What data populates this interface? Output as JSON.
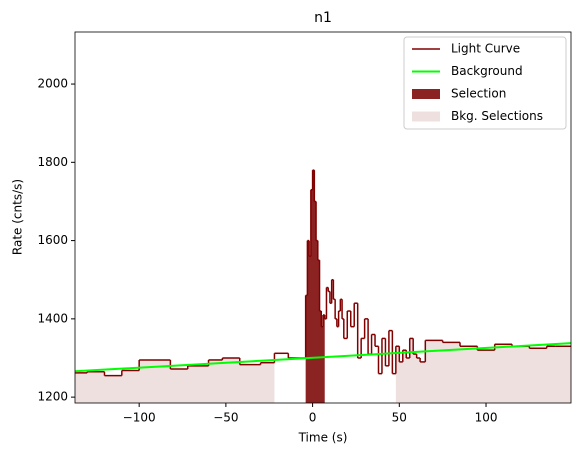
{
  "chart_data": {
    "type": "step",
    "title": "n1",
    "x_label": "Time (s)",
    "y_label": "Rate (cnts/s)",
    "xlim": [
      -137,
      149
    ],
    "ylim": [
      1185,
      2133
    ],
    "xticks": [
      {
        "value": -100,
        "label": "−100"
      },
      {
        "value": -50,
        "label": "−50"
      },
      0,
      50,
      100
    ],
    "yticks": [
      1200,
      1400,
      1600,
      1800,
      2000
    ],
    "series": [
      {
        "name": "Light Curve",
        "color": "#800000",
        "step": true,
        "x": [
          -137,
          -130,
          -120,
          -110,
          -100,
          -82,
          -72,
          -60,
          -52,
          -42,
          -30,
          -22,
          -14,
          -4,
          -3,
          -2,
          -1,
          0,
          1,
          2,
          3,
          4,
          5,
          6,
          7,
          8,
          9,
          10,
          11,
          12,
          13,
          14,
          15,
          16,
          17,
          18,
          20,
          22,
          24,
          26,
          28,
          30,
          32,
          34,
          36,
          38,
          40,
          42,
          44,
          46,
          48,
          50,
          52,
          54,
          56,
          58,
          60,
          62,
          65,
          75,
          85,
          95,
          105,
          115,
          125,
          135,
          140
        ],
        "values": [
          1262,
          1265,
          1255,
          1268,
          1295,
          1272,
          1280,
          1295,
          1300,
          1283,
          1288,
          1312,
          1300,
          1460,
          1600,
          1560,
          1730,
          1780,
          1700,
          1600,
          1550,
          1420,
          1380,
          1410,
          1400,
          1480,
          1470,
          1440,
          1500,
          1450,
          1400,
          1380,
          1420,
          1450,
          1400,
          1350,
          1420,
          1380,
          1440,
          1300,
          1350,
          1400,
          1310,
          1360,
          1330,
          1260,
          1350,
          1280,
          1370,
          1260,
          1330,
          1290,
          1320,
          1300,
          1350,
          1310,
          1300,
          1290,
          1345,
          1340,
          1330,
          1320,
          1335,
          1330,
          1325,
          1330,
          1330
        ]
      },
      {
        "name": "Background",
        "color": "#00ff00",
        "x": [
          -137,
          149
        ],
        "values": [
          1266,
          1338
        ]
      }
    ],
    "selection": {
      "name": "Selection",
      "color": "#8b2323",
      "range": [
        -4,
        7
      ]
    },
    "bkg_selections": {
      "name": "Bkg. Selections",
      "color": "#efe0e0",
      "ranges": [
        [
          -137,
          -22
        ],
        [
          48,
          149
        ]
      ]
    }
  }
}
